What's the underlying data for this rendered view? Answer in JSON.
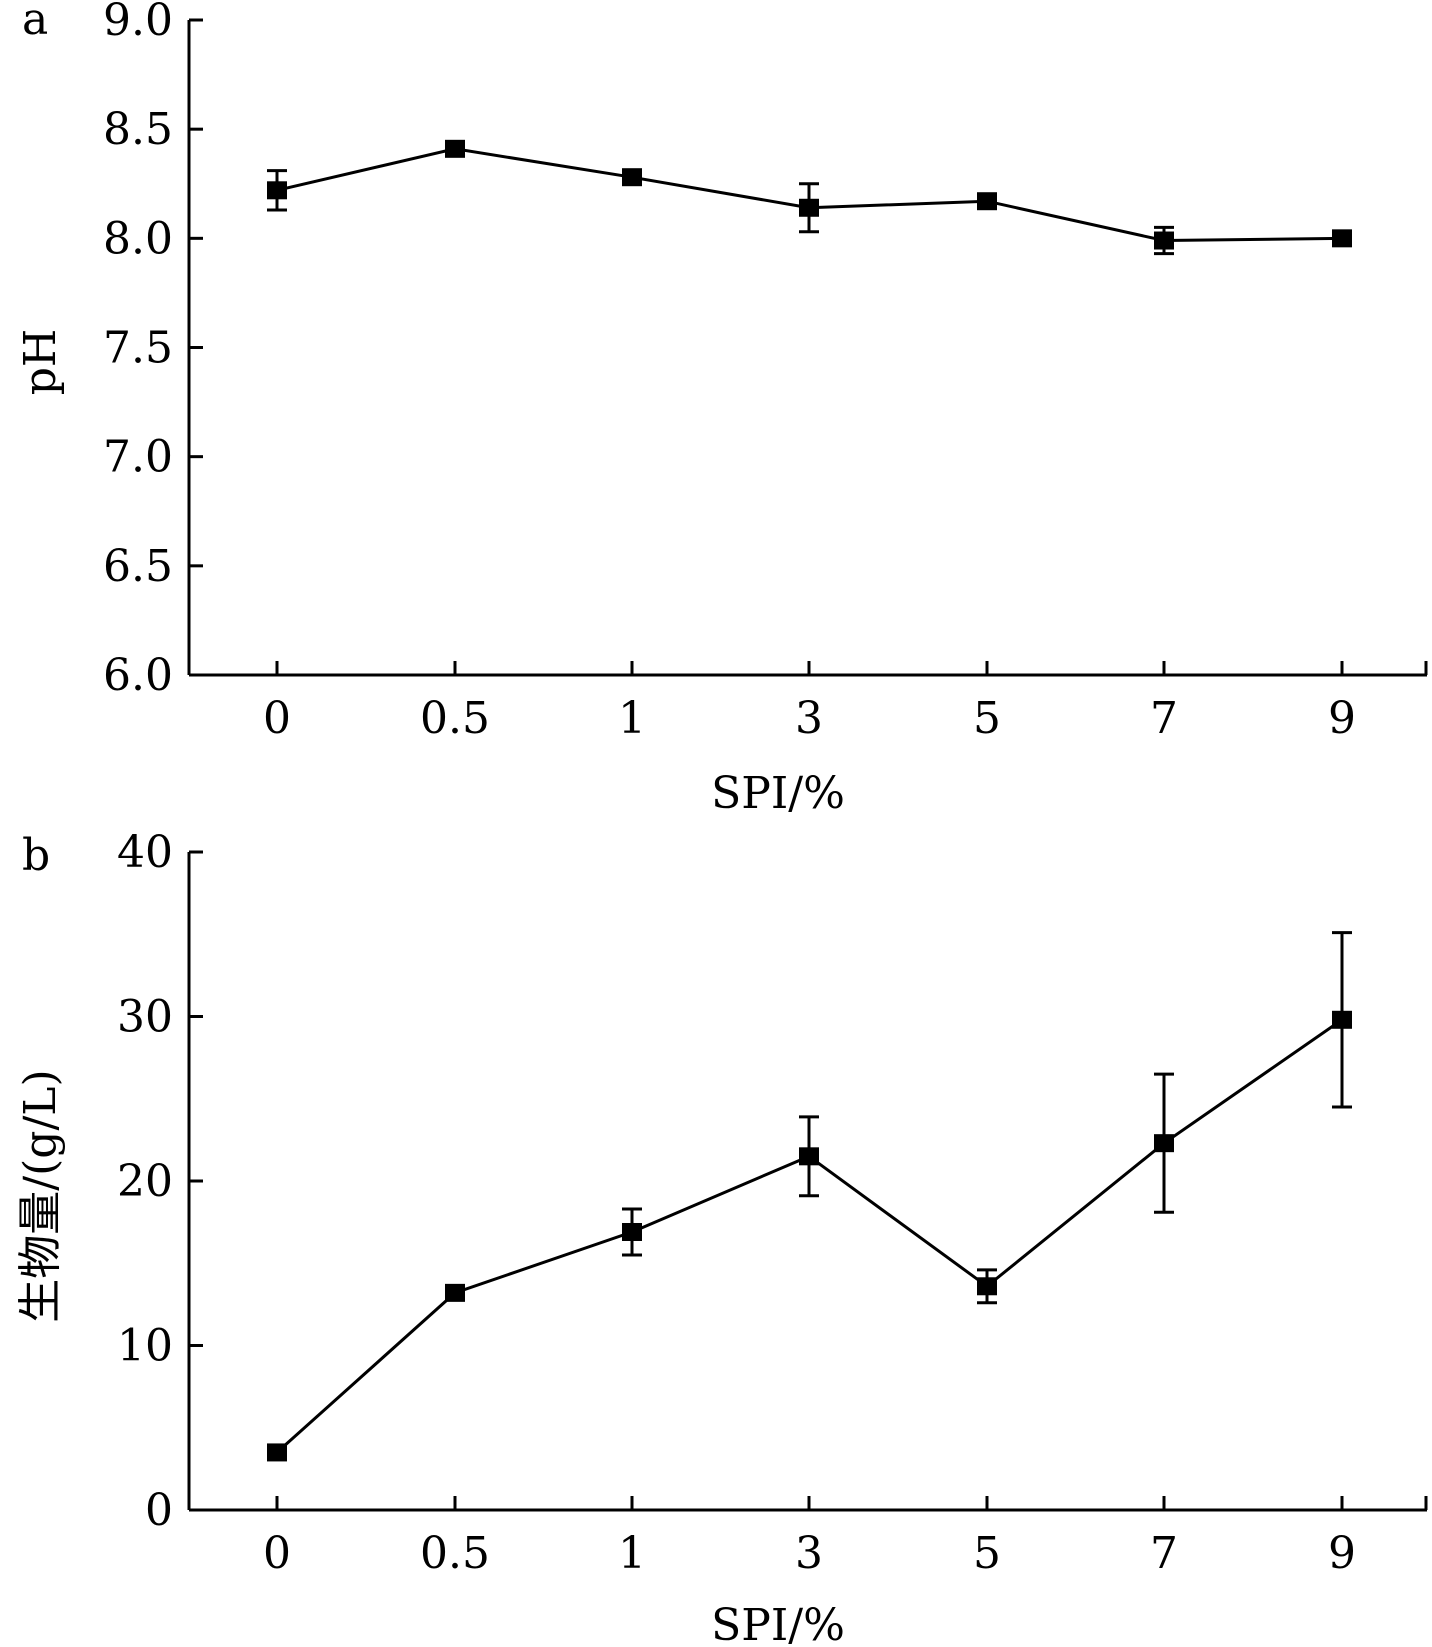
{
  "chart_data": [
    {
      "type": "line",
      "panel_label": "a",
      "categories": [
        "0",
        "0.5",
        "1",
        "3",
        "5",
        "7",
        "9"
      ],
      "xlabel": "SPI/%",
      "ylabel": "pH",
      "ylim": [
        6.0,
        9.0
      ],
      "yticks": [
        "6.0",
        "6.5",
        "7.0",
        "7.5",
        "8.0",
        "8.5",
        "9.0"
      ],
      "values": [
        8.22,
        8.41,
        8.28,
        8.14,
        8.17,
        7.99,
        8.0
      ],
      "errors": [
        0.09,
        0.0,
        0.0,
        0.11,
        0.0,
        0.06,
        0.0
      ],
      "grid": false,
      "marker": "square",
      "color": "#000000"
    },
    {
      "type": "line",
      "panel_label": "b",
      "categories": [
        "0",
        "0.5",
        "1",
        "3",
        "5",
        "7",
        "9"
      ],
      "xlabel": "SPI/%",
      "ylabel": "生物量/(g/L)",
      "ylim": [
        0,
        40
      ],
      "yticks": [
        "0",
        "10",
        "20",
        "30",
        "40"
      ],
      "values": [
        3.5,
        13.2,
        16.9,
        21.5,
        13.6,
        22.3,
        29.8
      ],
      "errors": [
        0.0,
        0.0,
        1.4,
        2.4,
        1.0,
        4.2,
        5.3
      ],
      "grid": false,
      "marker": "square",
      "color": "#000000"
    }
  ]
}
